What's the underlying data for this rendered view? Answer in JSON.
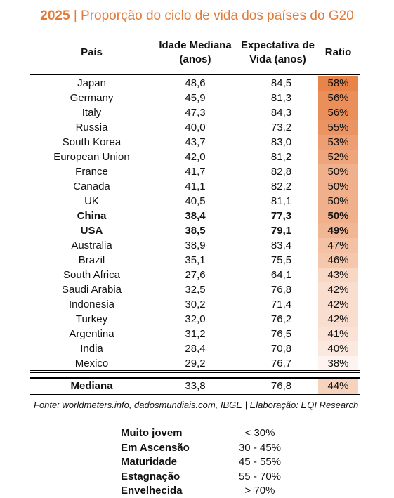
{
  "title": {
    "year": "2025",
    "separator": " | ",
    "text": "Proporção do ciclo de vida dos países do G20"
  },
  "headers": {
    "country": "País",
    "age_line1": "Idade Mediana",
    "age_line2": "(anos)",
    "life_line1": "Expectativa de",
    "life_line2": "Vida (anos)",
    "ratio": "Ratio"
  },
  "rows": [
    {
      "country": "Japan",
      "age": "48,6",
      "life": "84,5",
      "ratio": "58%",
      "ratio_value": 0.58
    },
    {
      "country": "Germany",
      "age": "45,9",
      "life": "81,3",
      "ratio": "56%",
      "ratio_value": 0.56
    },
    {
      "country": "Italy",
      "age": "47,3",
      "life": "84,3",
      "ratio": "56%",
      "ratio_value": 0.56
    },
    {
      "country": "Russia",
      "age": "40,0",
      "life": "73,2",
      "ratio": "55%",
      "ratio_value": 0.55
    },
    {
      "country": "South Korea",
      "age": "43,7",
      "life": "83,0",
      "ratio": "53%",
      "ratio_value": 0.53
    },
    {
      "country": "European Union",
      "age": "42,0",
      "life": "81,2",
      "ratio": "52%",
      "ratio_value": 0.52
    },
    {
      "country": "France",
      "age": "41,7",
      "life": "82,8",
      "ratio": "50%",
      "ratio_value": 0.5
    },
    {
      "country": "Canada",
      "age": "41,1",
      "life": "82,2",
      "ratio": "50%",
      "ratio_value": 0.5
    },
    {
      "country": "UK",
      "age": "40,5",
      "life": "81,1",
      "ratio": "50%",
      "ratio_value": 0.5
    },
    {
      "country": "China",
      "age": "38,4",
      "life": "77,3",
      "ratio": "50%",
      "ratio_value": 0.5,
      "bold": true
    },
    {
      "country": "USA",
      "age": "38,5",
      "life": "79,1",
      "ratio": "49%",
      "ratio_value": 0.49,
      "bold": true
    },
    {
      "country": "Australia",
      "age": "38,9",
      "life": "83,4",
      "ratio": "47%",
      "ratio_value": 0.47
    },
    {
      "country": "Brazil",
      "age": "35,1",
      "life": "75,5",
      "ratio": "46%",
      "ratio_value": 0.46
    },
    {
      "country": "South Africa",
      "age": "27,6",
      "life": "64,1",
      "ratio": "43%",
      "ratio_value": 0.43
    },
    {
      "country": "Saudi Arabia",
      "age": "32,5",
      "life": "76,8",
      "ratio": "42%",
      "ratio_value": 0.42
    },
    {
      "country": "Indonesia",
      "age": "30,2",
      "life": "71,4",
      "ratio": "42%",
      "ratio_value": 0.42
    },
    {
      "country": "Turkey",
      "age": "32,0",
      "life": "76,2",
      "ratio": "42%",
      "ratio_value": 0.42
    },
    {
      "country": "Argentina",
      "age": "31,2",
      "life": "76,5",
      "ratio": "41%",
      "ratio_value": 0.41
    },
    {
      "country": "India",
      "age": "28,4",
      "life": "70,8",
      "ratio": "40%",
      "ratio_value": 0.4
    },
    {
      "country": "Mexico",
      "age": "29,2",
      "life": "76,7",
      "ratio": "38%",
      "ratio_value": 0.38
    }
  ],
  "median": {
    "label": "Mediana",
    "age": "33,8",
    "life": "76,8",
    "ratio": "44%",
    "ratio_value": 0.44
  },
  "source": "Fonte: worldmeters.info, dadosmundiais.com, IBGE | Elaboração: EQI Research",
  "legend": [
    {
      "label": "Muito jovem",
      "range": "< 30%"
    },
    {
      "label": "Em Ascensão",
      "range": "30 - 45%"
    },
    {
      "label": "Maturidade",
      "range": "45 - 55%"
    },
    {
      "label": "Estagnação",
      "range": "55 - 70%"
    },
    {
      "label": "Envelhecida",
      "range": "> 70%"
    }
  ],
  "colors": {
    "accent": "#e07b3a",
    "heat_high": "#e8834a",
    "heat_low": "#ffffff"
  }
}
